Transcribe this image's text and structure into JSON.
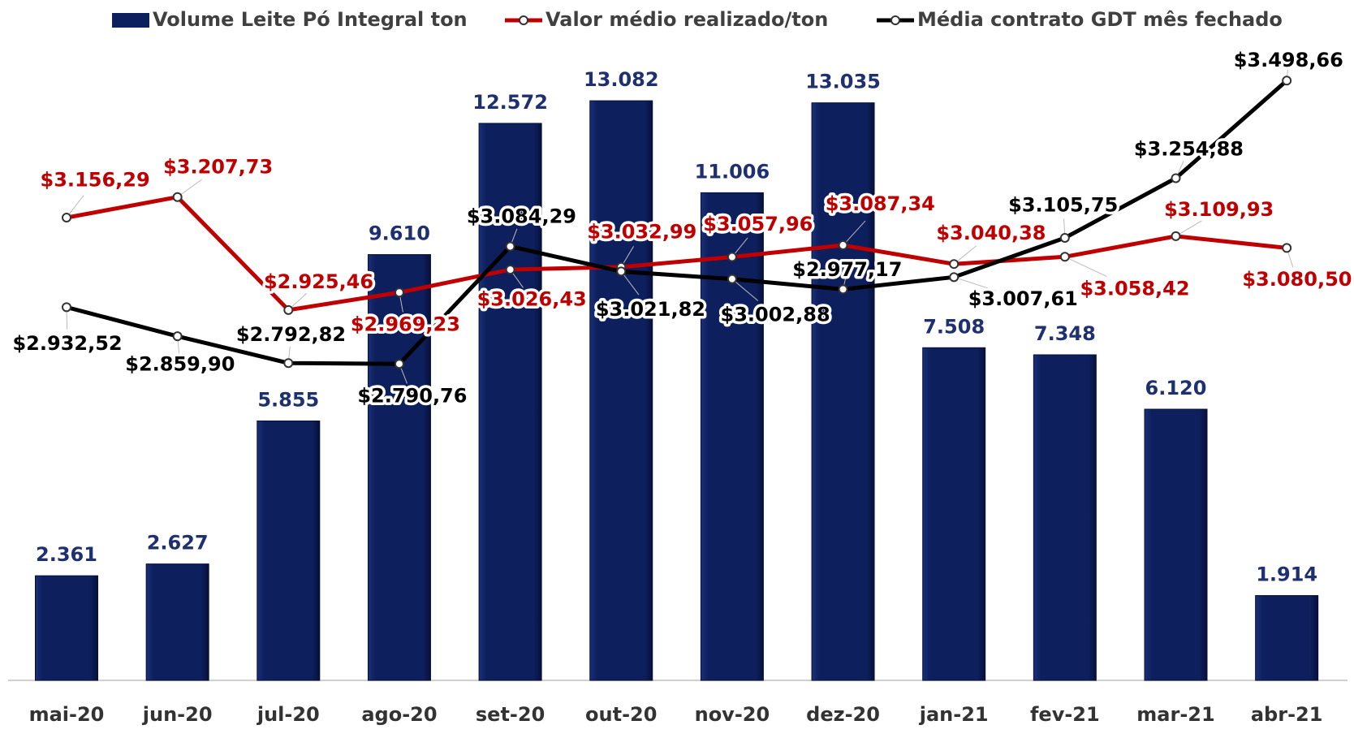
{
  "chart_data": {
    "type": "bar-line",
    "categories": [
      "mai-20",
      "jun-20",
      "jul-20",
      "ago-20",
      "set-20",
      "out-20",
      "nov-20",
      "dez-20",
      "jan-21",
      "fev-21",
      "mar-21",
      "abr-21"
    ],
    "ylim": [
      0,
      14000
    ],
    "y2lim": [
      2000,
      3550
    ],
    "legend": "top",
    "series": [
      {
        "name": "Volume Leite Pó Integral ton",
        "type": "bar",
        "color": "#0d1f5c",
        "values": [
          2361,
          2627,
          5855,
          9610,
          12572,
          13082,
          11006,
          13035,
          7508,
          7348,
          6120,
          1914
        ],
        "value_labels": [
          "2.361",
          "2.627",
          "5.855",
          "9.610",
          "12.572",
          "13.082",
          "11.006",
          "13.035",
          "7.508",
          "7.348",
          "6.120",
          "1.914"
        ]
      },
      {
        "name": "Valor médio realizado/ton",
        "type": "line",
        "axis": "y2",
        "color": "#c00000",
        "values": [
          3156.29,
          3207.73,
          2925.46,
          2969.23,
          3026.43,
          3032.99,
          3057.96,
          3087.34,
          3040.38,
          3058.42,
          3109.93,
          3080.5
        ],
        "value_labels": [
          "$3.156,29",
          "$3.207,73",
          "$2.925,46",
          "$2.969,23",
          "$3.026,43",
          "$3.032,99",
          "$3.057,96",
          "$3.087,34",
          "$3.040,38",
          "$3.058,42",
          "$3.109,93",
          "$3.080,50"
        ]
      },
      {
        "name": "Média contrato GDT mês fechado",
        "type": "line",
        "axis": "y2",
        "color": "#000000",
        "values": [
          2932.52,
          2859.9,
          2792.82,
          2790.76,
          3084.29,
          3021.82,
          3002.88,
          2977.17,
          3007.61,
          3105.75,
          3254.88,
          3498.66
        ],
        "value_labels": [
          "$2.932,52",
          "$2.859,90",
          "$2.792,82",
          "$2.790,76",
          "$3.084,29",
          "$3.021,82",
          "$3.002,88",
          "$2.977,17",
          "$3.007,61",
          "$3.105,75",
          "$3.254,88",
          "$3.498,66"
        ]
      }
    ]
  }
}
